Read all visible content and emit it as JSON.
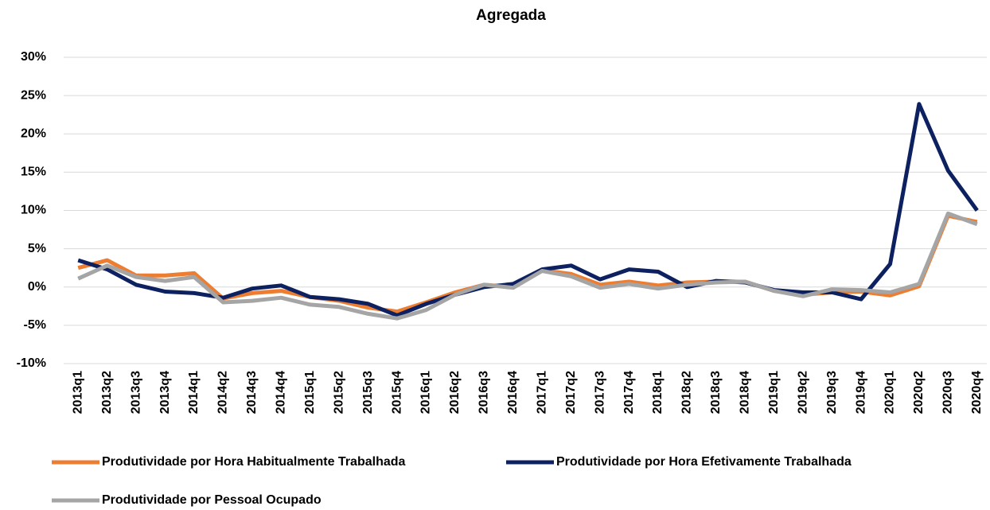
{
  "chart_data": {
    "type": "line",
    "title": "Agregada",
    "categories": [
      "2013q1",
      "2013q2",
      "2013q3",
      "2013q4",
      "2014q1",
      "2014q2",
      "2014q3",
      "2014q4",
      "2015q1",
      "2015q2",
      "2015q3",
      "2015q4",
      "2016q1",
      "2016q2",
      "2016q3",
      "2016q4",
      "2017q1",
      "2017q2",
      "2017q3",
      "2017q4",
      "2018q1",
      "2018q2",
      "2018q3",
      "2018q4",
      "2019q1",
      "2019q2",
      "2019q3",
      "2019q4",
      "2020q1",
      "2020q2",
      "2020q3",
      "2020q4"
    ],
    "series": [
      {
        "name": "Produtividade por Hora Habitualmente Trabalhada",
        "color": "#ed7d31",
        "values": [
          2.5,
          3.5,
          1.5,
          1.5,
          1.8,
          -1.5,
          -0.8,
          -0.5,
          -1.3,
          -1.8,
          -2.7,
          -3.2,
          -2.0,
          -0.7,
          0.3,
          0.0,
          2.2,
          1.7,
          0.3,
          0.7,
          0.2,
          0.6,
          0.7,
          0.7,
          -0.5,
          -1.0,
          -0.7,
          -0.6,
          -1.1,
          0.1,
          9.3,
          8.5
        ]
      },
      {
        "name": "Produtividade por Hora Efetivamente Trabalhada",
        "color": "#0d2160",
        "values": [
          3.5,
          2.3,
          0.3,
          -0.6,
          -0.8,
          -1.4,
          -0.2,
          0.2,
          -1.3,
          -1.6,
          -2.2,
          -3.7,
          -2.2,
          -1.0,
          0.0,
          0.4,
          2.3,
          2.8,
          1.0,
          2.3,
          2.0,
          0.0,
          0.8,
          0.6,
          -0.4,
          -0.7,
          -0.7,
          -1.6,
          3.0,
          23.9,
          15.2,
          10.0
        ]
      },
      {
        "name": "Produtividade por Pessoal Ocupado",
        "color": "#a5a5a5",
        "values": [
          1.1,
          2.8,
          1.3,
          0.8,
          1.3,
          -2.0,
          -1.8,
          -1.4,
          -2.3,
          -2.6,
          -3.5,
          -4.1,
          -3.0,
          -1.0,
          0.3,
          -0.1,
          2.1,
          1.4,
          -0.1,
          0.4,
          -0.2,
          0.3,
          0.6,
          0.7,
          -0.5,
          -1.2,
          -0.3,
          -0.4,
          -0.7,
          0.4,
          9.6,
          8.2
        ]
      }
    ],
    "ylim": [
      -10,
      30
    ],
    "yticks": [
      {
        "value": -10,
        "label": "-10%"
      },
      {
        "value": -5,
        "label": "-5%"
      },
      {
        "value": 0,
        "label": "0%"
      },
      {
        "value": 5,
        "label": "5%"
      },
      {
        "value": 10,
        "label": "10%"
      },
      {
        "value": 15,
        "label": "15%"
      },
      {
        "value": 20,
        "label": "20%"
      },
      {
        "value": 25,
        "label": "25%"
      },
      {
        "value": 30,
        "label": "30%"
      }
    ],
    "grid": true
  }
}
